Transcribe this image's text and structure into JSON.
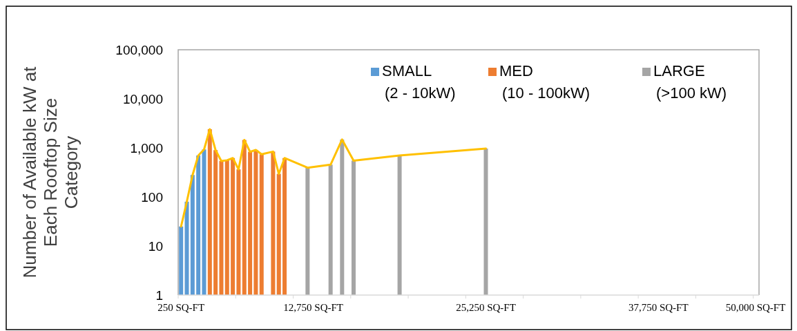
{
  "chart_data": {
    "type": "bar",
    "ylabel": "Number of Available kW at Each Rooftop Size Category",
    "categories": [
      "250 SQ-FT",
      null,
      null,
      null,
      null,
      null,
      null,
      null,
      null,
      null,
      null,
      null,
      null,
      null,
      null,
      null,
      null,
      null,
      null,
      null,
      null,
      null,
      null,
      "12,750 SQ-FT",
      null,
      null,
      null,
      null,
      null,
      null,
      null,
      null,
      null,
      null,
      null,
      null,
      null,
      null,
      null,
      null,
      null,
      null,
      null,
      null,
      null,
      null,
      null,
      null,
      null,
      null,
      null,
      null,
      null,
      "25,250 SQ-FT",
      null,
      null,
      null,
      null,
      null,
      null,
      null,
      null,
      null,
      null,
      null,
      null,
      null,
      null,
      null,
      null,
      null,
      null,
      null,
      null,
      null,
      null,
      null,
      null,
      null,
      null,
      null,
      null,
      null,
      "37,750 SQ-FT",
      null,
      null,
      null,
      null,
      null,
      null,
      null,
      null,
      null,
      null,
      null,
      null,
      null,
      null,
      null,
      null,
      "50,000 SQ-FT"
    ],
    "series": [
      {
        "name": "SMALL (2 - 10kW)",
        "color": "#5b9bd5",
        "values": [
          25,
          80,
          280,
          700,
          930,
          null,
          null,
          null,
          null,
          null,
          null,
          null,
          null,
          null,
          null,
          null,
          null,
          null,
          null,
          null,
          null,
          null,
          null,
          null,
          null,
          null,
          null,
          null,
          null,
          null,
          null,
          null,
          null,
          null,
          null,
          null,
          null,
          null,
          null,
          null,
          null,
          null,
          null,
          null,
          null,
          null,
          null,
          null,
          null,
          null,
          null,
          null,
          null,
          null,
          null,
          null,
          null,
          null,
          null,
          null,
          null,
          null,
          null,
          null,
          null,
          null,
          null,
          null,
          null,
          null,
          null,
          null,
          null,
          null,
          null,
          null,
          null,
          null,
          null,
          null,
          null,
          null,
          null,
          null,
          null,
          null,
          null,
          null,
          null,
          null,
          null,
          null,
          null,
          null,
          null,
          null,
          null,
          null,
          null,
          null,
          null
        ]
      },
      {
        "name": "MED (10 - 100kW)",
        "color": "#ed7d31",
        "values": [
          null,
          null,
          null,
          null,
          null,
          2400,
          900,
          540,
          560,
          620,
          365,
          1450,
          830,
          910,
          740,
          null,
          840,
          295,
          620,
          null,
          null,
          null,
          null,
          null,
          null,
          null,
          null,
          null,
          null,
          null,
          null,
          null,
          null,
          null,
          null,
          null,
          null,
          null,
          null,
          null,
          null,
          null,
          null,
          null,
          null,
          null,
          null,
          null,
          null,
          null,
          null,
          null,
          null,
          null,
          null,
          null,
          null,
          null,
          null,
          null,
          null,
          null,
          null,
          null,
          null,
          null,
          null,
          null,
          null,
          null,
          null,
          null,
          null,
          null,
          null,
          null,
          null,
          null,
          null,
          null,
          null,
          null,
          null,
          null,
          null,
          null,
          null,
          null,
          null,
          null,
          null,
          null,
          null,
          null,
          null,
          null,
          null,
          null,
          null,
          null,
          null
        ]
      },
      {
        "name": "LARGE (>100 kW)",
        "color": "#a5a5a5",
        "values": [
          null,
          null,
          null,
          null,
          null,
          null,
          null,
          null,
          null,
          null,
          null,
          null,
          null,
          null,
          null,
          null,
          null,
          null,
          null,
          null,
          null,
          null,
          395,
          null,
          null,
          null,
          455,
          null,
          1480,
          null,
          550,
          null,
          null,
          null,
          null,
          null,
          null,
          null,
          700,
          null,
          null,
          null,
          null,
          null,
          null,
          null,
          null,
          null,
          null,
          null,
          null,
          null,
          null,
          970,
          null,
          null,
          null,
          null,
          null,
          null,
          null,
          null,
          null,
          null,
          null,
          null,
          null,
          null,
          null,
          null,
          null,
          null,
          null,
          null,
          null,
          null,
          null,
          null,
          null,
          null,
          null,
          null,
          null,
          null,
          null,
          null,
          null,
          null,
          null,
          null,
          null,
          null,
          null,
          null,
          null,
          null,
          null,
          null,
          null,
          null,
          null
        ]
      },
      {
        "type": "line",
        "color": "#ffc000",
        "values": [
          25,
          80,
          280,
          700,
          930,
          2400,
          900,
          540,
          560,
          620,
          365,
          1450,
          830,
          910,
          740,
          null,
          840,
          295,
          620,
          null,
          null,
          null,
          395,
          null,
          null,
          null,
          455,
          null,
          1480,
          null,
          550,
          null,
          null,
          null,
          null,
          null,
          null,
          null,
          700,
          null,
          null,
          null,
          null,
          null,
          null,
          null,
          null,
          null,
          null,
          null,
          null,
          null,
          null,
          970,
          null,
          null,
          null,
          null,
          null,
          null,
          null,
          null,
          null,
          null,
          null,
          null,
          null,
          null,
          null,
          null,
          null,
          null,
          null,
          null,
          null,
          null,
          null,
          null,
          null,
          null,
          null,
          null,
          null,
          null,
          null,
          null,
          null,
          null,
          null,
          null,
          null,
          null,
          null,
          null,
          null,
          null,
          null,
          null,
          null,
          null,
          null
        ]
      }
    ],
    "log": true,
    "ylim": [
      1,
      100000
    ],
    "yticks": [
      {
        "value": 1,
        "label": "1"
      },
      {
        "value": 10,
        "label": "10"
      },
      {
        "value": 100,
        "label": "100"
      },
      {
        "value": 1000,
        "label": "1,000"
      },
      {
        "value": 10000,
        "label": "10,000"
      },
      {
        "value": 100000,
        "label": "100,000"
      }
    ],
    "legend": "top right",
    "grid": false,
    "marker": "none"
  }
}
